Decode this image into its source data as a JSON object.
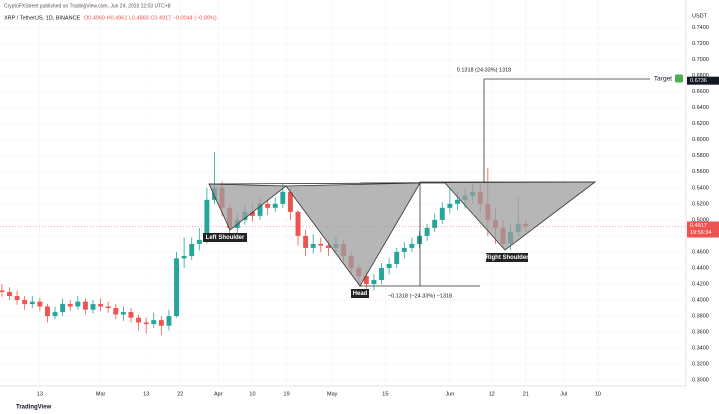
{
  "chart_data": {
    "type": "candlestick",
    "header": {
      "publisher": "CryptoFXStreet published on TradingView.com, Jun 24, 2023 12:03 UTC+8",
      "symbol": "XRP / TetherUS, 1D, BINANCE",
      "ohlc": "O0.4960 H0.4961 L0.4883 C0.4917 −0.0044 (−0.89%)"
    },
    "y_axis_label": "USDT",
    "x": [
      2,
      4,
      6,
      8,
      10,
      12,
      14,
      16,
      18,
      20,
      22,
      24,
      26,
      28,
      30,
      32,
      34,
      36,
      38,
      40,
      42,
      44,
      46,
      48,
      50,
      52,
      54,
      56,
      58,
      60,
      62,
      64,
      66,
      68,
      70,
      72,
      74,
      76,
      78,
      80,
      82,
      84,
      86,
      88,
      90,
      92,
      94,
      96,
      98,
      100,
      102,
      104,
      106,
      108,
      110,
      112,
      114,
      116,
      118,
      120,
      122,
      124,
      126,
      128,
      130,
      132,
      134,
      136,
      138,
      140
    ],
    "open": [
      0.412,
      0.41,
      0.405,
      0.4,
      0.395,
      0.398,
      0.392,
      0.38,
      0.385,
      0.395,
      0.392,
      0.398,
      0.388,
      0.395,
      0.392,
      0.39,
      0.382,
      0.385,
      0.378,
      0.372,
      0.37,
      0.375,
      0.368,
      0.38,
      0.452,
      0.455,
      0.47,
      0.475,
      0.525,
      0.54,
      0.515,
      0.49,
      0.5,
      0.51,
      0.505,
      0.52,
      0.515,
      0.52,
      0.535,
      0.51,
      0.48,
      0.465,
      0.47,
      0.468,
      0.465,
      0.47,
      0.455,
      0.44,
      0.43,
      0.42,
      0.425,
      0.44,
      0.445,
      0.46,
      0.465,
      0.47,
      0.48,
      0.49,
      0.5,
      0.515,
      0.52,
      0.525,
      0.53,
      0.535,
      0.52,
      0.5,
      0.49,
      0.47,
      0.485,
      0.495
    ],
    "high": [
      0.42,
      0.416,
      0.412,
      0.405,
      0.405,
      0.403,
      0.395,
      0.392,
      0.402,
      0.4,
      0.405,
      0.402,
      0.4,
      0.402,
      0.398,
      0.395,
      0.392,
      0.39,
      0.382,
      0.378,
      0.384,
      0.38,
      0.388,
      0.46,
      0.478,
      0.478,
      0.49,
      0.54,
      0.585,
      0.548,
      0.52,
      0.508,
      0.518,
      0.52,
      0.528,
      0.525,
      0.528,
      0.545,
      0.54,
      0.512,
      0.488,
      0.482,
      0.478,
      0.475,
      0.48,
      0.475,
      0.46,
      0.445,
      0.436,
      0.432,
      0.446,
      0.452,
      0.465,
      0.472,
      0.478,
      0.486,
      0.495,
      0.508,
      0.522,
      0.54,
      0.535,
      0.538,
      0.545,
      0.545,
      0.565,
      0.515,
      0.5,
      0.495,
      0.528,
      0.5
    ],
    "low": [
      0.404,
      0.4,
      0.394,
      0.388,
      0.39,
      0.386,
      0.372,
      0.376,
      0.38,
      0.386,
      0.388,
      0.382,
      0.383,
      0.386,
      0.384,
      0.376,
      0.374,
      0.372,
      0.362,
      0.358,
      0.365,
      0.356,
      0.362,
      0.378,
      0.44,
      0.45,
      0.462,
      0.47,
      0.52,
      0.505,
      0.478,
      0.482,
      0.494,
      0.498,
      0.5,
      0.506,
      0.51,
      0.515,
      0.5,
      0.468,
      0.455,
      0.458,
      0.46,
      0.455,
      0.46,
      0.448,
      0.432,
      0.418,
      0.41,
      0.412,
      0.42,
      0.432,
      0.44,
      0.452,
      0.46,
      0.465,
      0.474,
      0.485,
      0.495,
      0.508,
      0.512,
      0.515,
      0.52,
      0.51,
      0.48,
      0.47,
      0.465,
      0.462,
      0.48,
      0.485
    ],
    "close": [
      0.41,
      0.405,
      0.4,
      0.395,
      0.398,
      0.392,
      0.38,
      0.385,
      0.395,
      0.392,
      0.398,
      0.388,
      0.395,
      0.392,
      0.39,
      0.382,
      0.385,
      0.378,
      0.372,
      0.37,
      0.375,
      0.368,
      0.38,
      0.452,
      0.455,
      0.47,
      0.475,
      0.525,
      0.54,
      0.515,
      0.49,
      0.5,
      0.51,
      0.505,
      0.52,
      0.515,
      0.52,
      0.535,
      0.51,
      0.48,
      0.465,
      0.47,
      0.468,
      0.465,
      0.47,
      0.455,
      0.44,
      0.43,
      0.42,
      0.425,
      0.44,
      0.445,
      0.46,
      0.465,
      0.47,
      0.48,
      0.49,
      0.5,
      0.515,
      0.52,
      0.525,
      0.53,
      0.535,
      0.52,
      0.5,
      0.49,
      0.47,
      0.485,
      0.495,
      0.492
    ],
    "up_color": "#26a69a",
    "down_color": "#ef5350",
    "xlim": [
      1.5,
      182.2
    ],
    "xticks": [
      {
        "value": 12,
        "label": "13"
      },
      {
        "value": 28,
        "label": "Mar"
      },
      {
        "value": 40,
        "label": "13"
      },
      {
        "value": 49,
        "label": "22"
      },
      {
        "value": 59,
        "label": "Apr"
      },
      {
        "value": 68,
        "label": "10"
      },
      {
        "value": 77,
        "label": "19"
      },
      {
        "value": 89,
        "label": "May"
      },
      {
        "value": 103,
        "label": "15"
      },
      {
        "value": 120,
        "label": "Jun"
      },
      {
        "value": 131,
        "label": "12"
      },
      {
        "value": 140,
        "label": "21"
      },
      {
        "value": 150,
        "label": "Jul"
      },
      {
        "value": 159,
        "label": "10"
      }
    ],
    "ylim": [
      0.2928,
      0.7742
    ],
    "yticks": [
      {
        "value": 0.3,
        "label": "0.3000"
      },
      {
        "value": 0.32,
        "label": "0.3200"
      },
      {
        "value": 0.34,
        "label": "0.3400"
      },
      {
        "value": 0.36,
        "label": "0.3600"
      },
      {
        "value": 0.38,
        "label": "0.3800"
      },
      {
        "value": 0.4,
        "label": "0.4000"
      },
      {
        "value": 0.42,
        "label": "0.4200"
      },
      {
        "value": 0.44,
        "label": "0.4400"
      },
      {
        "value": 0.46,
        "label": "0.4600"
      },
      {
        "value": 0.48,
        "label": "0.4800"
      },
      {
        "value": 0.5,
        "label": "0.5000"
      },
      {
        "value": 0.52,
        "label": "0.5200"
      },
      {
        "value": 0.54,
        "label": "0.5400"
      },
      {
        "value": 0.56,
        "label": "0.5600"
      },
      {
        "value": 0.58,
        "label": "0.5800"
      },
      {
        "value": 0.6,
        "label": "0.6000"
      },
      {
        "value": 0.62,
        "label": "0.6200"
      },
      {
        "value": 0.64,
        "label": "0.6400"
      },
      {
        "value": 0.66,
        "label": "0.6600"
      },
      {
        "value": 0.68,
        "label": "0.6800"
      },
      {
        "value": 0.7,
        "label": "0.7000"
      },
      {
        "value": 0.72,
        "label": "0.7200"
      },
      {
        "value": 0.74,
        "label": "0.7400"
      }
    ],
    "last_price": 0.4917,
    "countdown": "19:56:34",
    "target": {
      "label": "Target",
      "value": 0.6736
    },
    "annotations": {
      "left_shoulder": "Left Shoulder",
      "head": "Head",
      "right_shoulder": "Right Shoulder",
      "measure_up": "0.1318 (24.33%) 1318",
      "measure_down": "−0.1318 (−24.33%) −1318"
    },
    "logo": "TradingView"
  }
}
